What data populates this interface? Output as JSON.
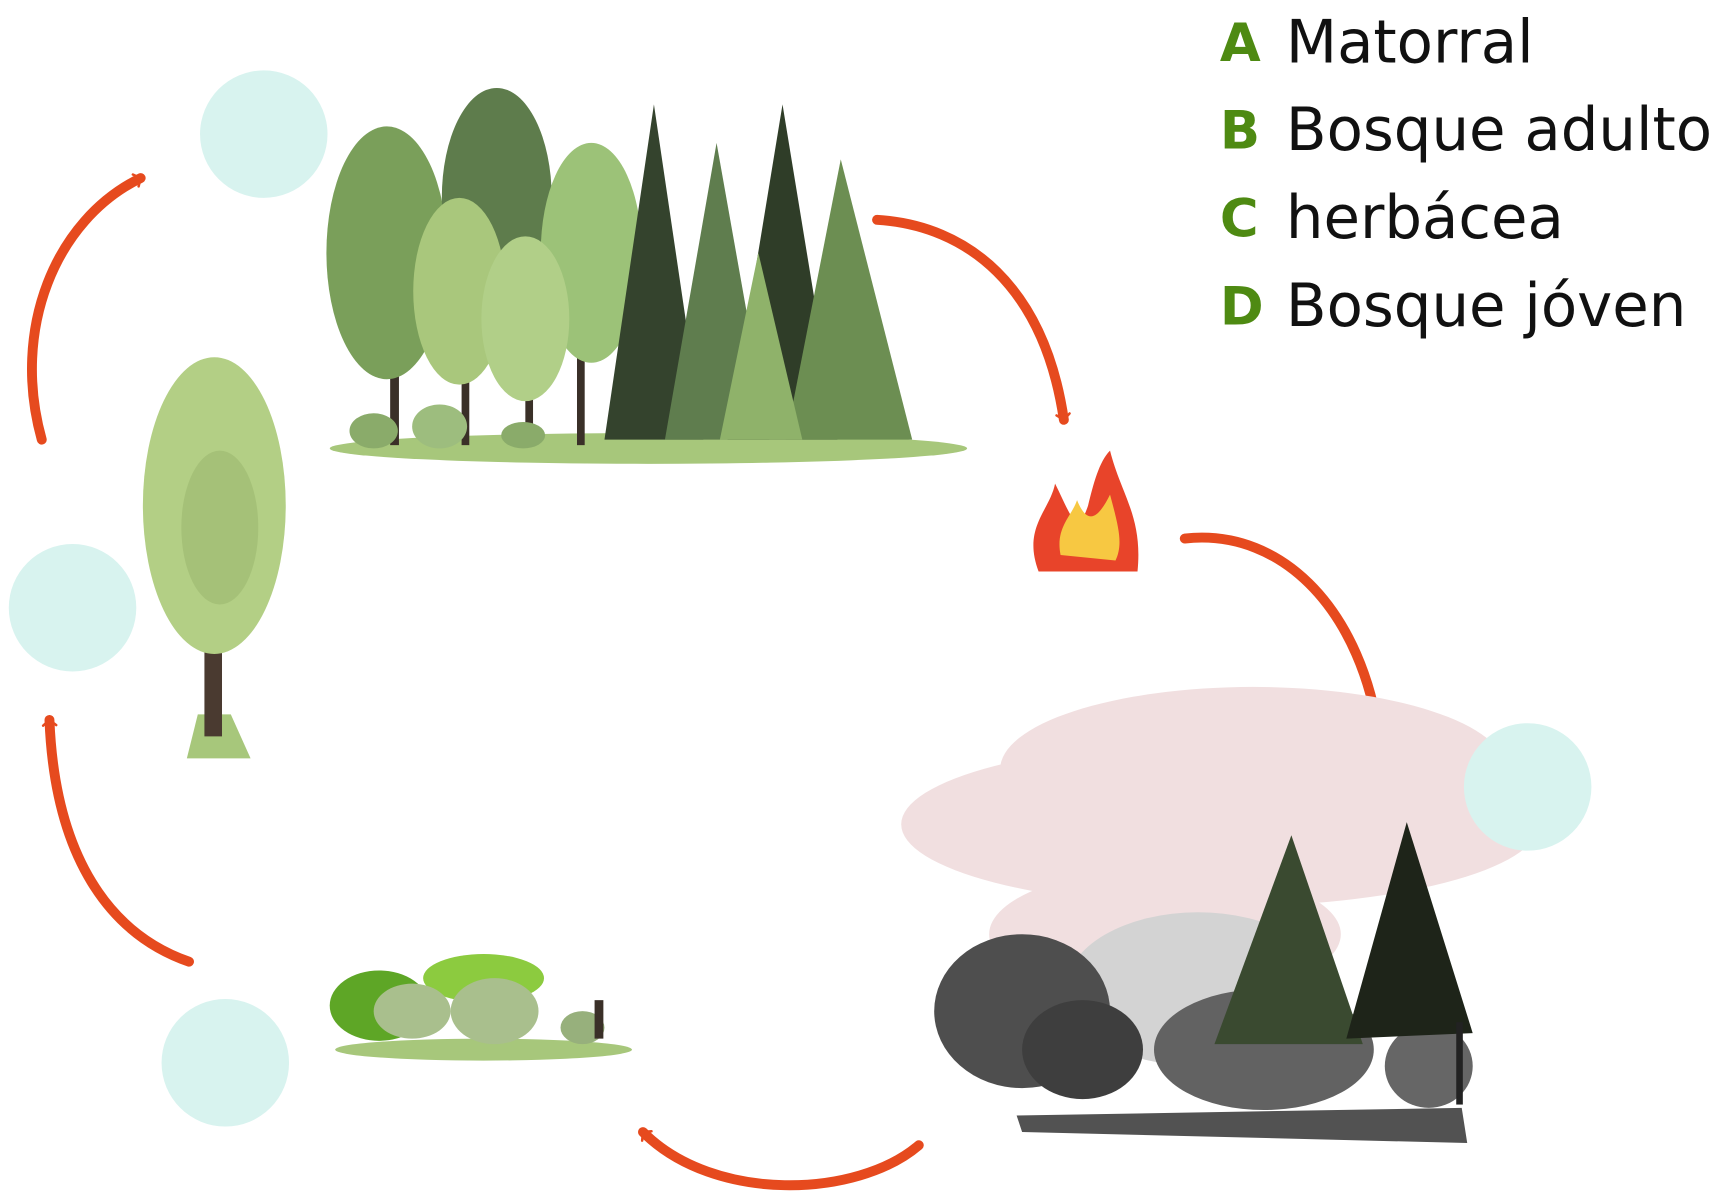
{
  "legend": {
    "items": [
      {
        "letter": "A",
        "label": "Matorral"
      },
      {
        "letter": "B",
        "label": "Bosque adulto"
      },
      {
        "letter": "C",
        "label": "herbácea"
      },
      {
        "letter": "D",
        "label": "Bosque jóven"
      }
    ]
  }
}
